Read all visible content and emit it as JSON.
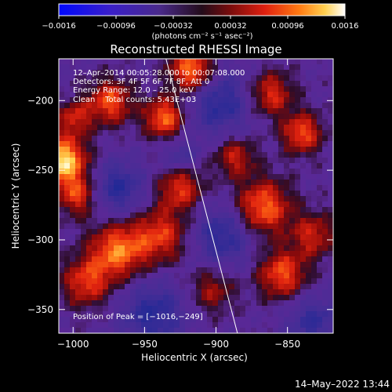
{
  "chart_data": {
    "type": "heatmap",
    "title": "Reconstructed RHESSI Image",
    "xlabel": "Heliocentric X (arcsec)",
    "ylabel": "Heliocentric Y (arcsec)",
    "xlim": [
      -1010,
      -818
    ],
    "ylim": [
      -367,
      -170
    ],
    "x_ticks": [
      -1000,
      -950,
      -900,
      -850
    ],
    "x_tick_labels": [
      "−1000",
      "−950",
      "−900",
      "−850"
    ],
    "y_ticks": [
      -200,
      -250,
      -300,
      -350
    ],
    "y_tick_labels": [
      "−200",
      "−250",
      "−300",
      "−350"
    ],
    "colorbar": {
      "range": [
        -0.0016,
        0.0016
      ],
      "ticks": [
        -0.0016,
        -0.00096,
        -0.00032,
        0.00032,
        0.00096,
        0.0016
      ],
      "tick_labels": [
        "−0.0016",
        "−0.00096",
        "−0.00032",
        "0.00032",
        "0.00096",
        "0.0016"
      ],
      "unit_label": "(photons cm⁻² s⁻¹ asec⁻²)"
    },
    "annotations": [
      "12–Apr–2014 00:05:28.000 to 00:07:08.000",
      "Detectors: 3F 4F 5F 6F 7F 8F, Att 0",
      "Energy Range: 12.0 – 25.0 keV",
      "Clean    Total counts: 5.43E+03"
    ],
    "peak_label": "Position of Peak = [−1016,−249]",
    "peak_position": [
      -1016,
      -249
    ],
    "limb_line": {
      "x": [
        -935,
        -885
      ],
      "y": [
        -170,
        -367
      ]
    },
    "grid": false,
    "legend": "none"
  },
  "footer": {
    "date": "14–May–2022 13:44"
  }
}
